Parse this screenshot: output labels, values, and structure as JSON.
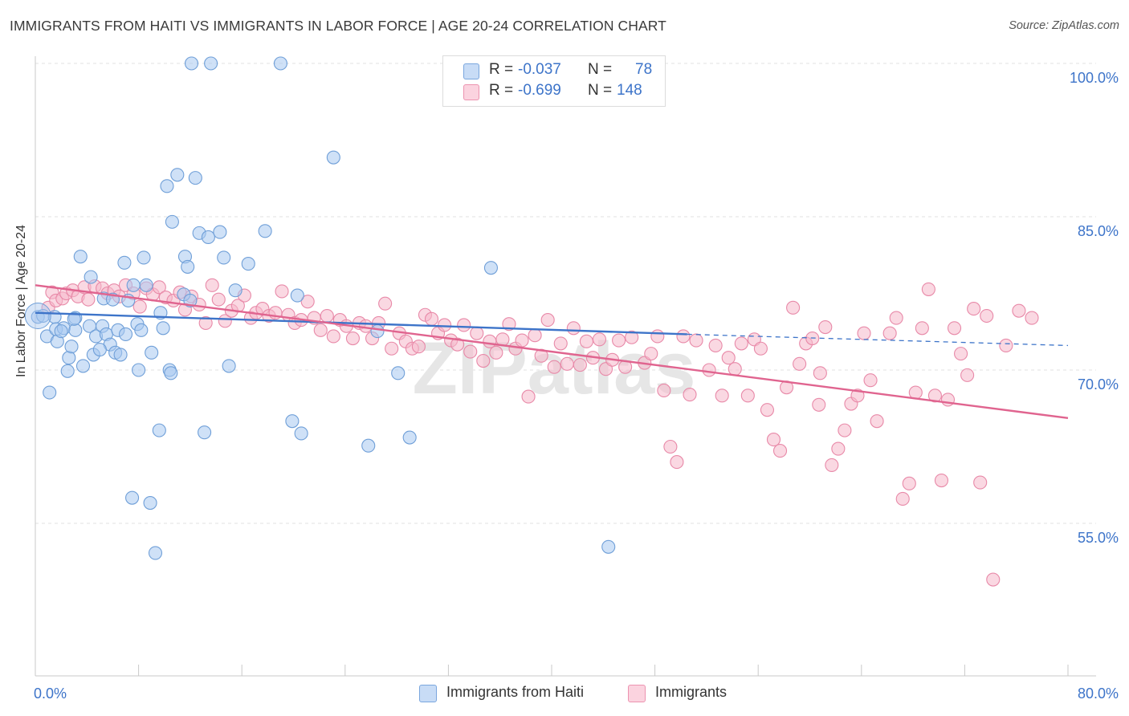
{
  "header": {
    "title": "IMMIGRANTS FROM HAITI VS IMMIGRANTS IN LABOR FORCE | AGE 20-24 CORRELATION CHART",
    "source": "Source: ZipAtlas.com"
  },
  "watermark": "ZIPatlas",
  "legend": {
    "rows": [
      {
        "r_label": "R =",
        "r_value": "-0.037",
        "n_label": "N =",
        "n_value": "78",
        "color": "#a8c8f0"
      },
      {
        "r_label": "R =",
        "r_value": "-0.699",
        "n_label": "N =",
        "n_value": "148",
        "color": "#f5b8cb"
      }
    ]
  },
  "bottom_legend": {
    "items": [
      {
        "label": "Immigrants from Haiti",
        "color": "#a8c8f0"
      },
      {
        "label": "Immigrants",
        "color": "#f5b8cb"
      }
    ]
  },
  "chart_data": {
    "type": "scatter",
    "title": "IMMIGRANTS FROM HAITI VS IMMIGRANTS IN LABOR FORCE | AGE 20-24 CORRELATION CHART",
    "ylabel": "In Labor Force | Age 20-24",
    "xlabel": "",
    "xlim": [
      0,
      80
    ],
    "ylim": [
      40,
      101.5
    ],
    "x_tick_labels": [
      {
        "value": 0,
        "label": "0.0%"
      },
      {
        "value": 80,
        "label": "80.0%"
      }
    ],
    "y_tick_labels": [
      {
        "value": 100,
        "label": "100.0%"
      },
      {
        "value": 85,
        "label": "85.0%"
      },
      {
        "value": 70,
        "label": "70.0%"
      },
      {
        "value": 55,
        "label": "55.0%"
      }
    ],
    "grid": true,
    "legend_position": "top-center",
    "series": [
      {
        "name": "Immigrants from Haiti",
        "color": "#a8c8f0",
        "stroke": "#6f9fd8",
        "trend_color": "#3d74c9",
        "R": -0.037,
        "N": 78,
        "trend": {
          "x0": 0,
          "y0": 75.6,
          "x1": 50.5,
          "y1": 73.5,
          "dash_to_x": 80,
          "dash_to_y": 72.4
        },
        "points": [
          [
            0.2,
            75.2
          ],
          [
            0.6,
            75.3
          ],
          [
            0.9,
            73.3
          ],
          [
            1.1,
            67.8
          ],
          [
            1.5,
            75.2
          ],
          [
            1.6,
            74.0
          ],
          [
            1.7,
            72.8
          ],
          [
            2.2,
            74.1
          ],
          [
            2.5,
            69.9
          ],
          [
            2.6,
            71.2
          ],
          [
            2.8,
            72.3
          ],
          [
            3.1,
            73.9
          ],
          [
            3.1,
            75.1
          ],
          [
            3.5,
            81.1
          ],
          [
            3.7,
            70.4
          ],
          [
            4.2,
            74.3
          ],
          [
            4.3,
            79.1
          ],
          [
            4.5,
            71.5
          ],
          [
            4.7,
            73.3
          ],
          [
            5.2,
            74.3
          ],
          [
            5.3,
            77.0
          ],
          [
            5.5,
            73.5
          ],
          [
            5.8,
            72.5
          ],
          [
            6.0,
            76.9
          ],
          [
            6.2,
            71.7
          ],
          [
            6.4,
            73.9
          ],
          [
            6.6,
            71.5
          ],
          [
            6.9,
            80.5
          ],
          [
            7.0,
            73.5
          ],
          [
            7.2,
            76.8
          ],
          [
            7.5,
            57.5
          ],
          [
            7.6,
            78.3
          ],
          [
            7.9,
            74.5
          ],
          [
            8.2,
            73.9
          ],
          [
            8.4,
            81.0
          ],
          [
            8.6,
            78.3
          ],
          [
            8.9,
            57.0
          ],
          [
            9.0,
            71.7
          ],
          [
            9.3,
            52.1
          ],
          [
            9.6,
            64.1
          ],
          [
            9.9,
            74.1
          ],
          [
            10.2,
            88.0
          ],
          [
            10.4,
            70.0
          ],
          [
            10.6,
            84.5
          ],
          [
            11.0,
            89.1
          ],
          [
            11.5,
            77.4
          ],
          [
            11.6,
            81.1
          ],
          [
            11.8,
            80.1
          ],
          [
            12.1,
            100.0
          ],
          [
            12.4,
            88.8
          ],
          [
            12.7,
            83.4
          ],
          [
            13.1,
            63.9
          ],
          [
            13.4,
            83.0
          ],
          [
            13.6,
            100.0
          ],
          [
            14.3,
            83.5
          ],
          [
            14.6,
            81.0
          ],
          [
            15.0,
            70.4
          ],
          [
            15.5,
            77.8
          ],
          [
            16.5,
            80.4
          ],
          [
            17.8,
            83.6
          ],
          [
            19.0,
            100.0
          ],
          [
            19.9,
            65.0
          ],
          [
            20.3,
            77.3
          ],
          [
            20.6,
            63.8
          ],
          [
            23.1,
            90.8
          ],
          [
            25.8,
            62.6
          ],
          [
            28.1,
            69.7
          ],
          [
            29.0,
            63.4
          ],
          [
            35.3,
            80.0
          ],
          [
            44.4,
            52.7
          ],
          [
            3.0,
            75.0
          ],
          [
            5.0,
            72.0
          ],
          [
            9.7,
            75.6
          ],
          [
            12.0,
            76.8
          ],
          [
            8.0,
            70.0
          ],
          [
            10.5,
            69.7
          ],
          [
            2.0,
            73.8
          ],
          [
            26.5,
            73.8
          ]
        ]
      },
      {
        "name": "Immigrants",
        "color": "#f5b8cb",
        "stroke": "#e889a8",
        "trend_color": "#e0648f",
        "R": -0.699,
        "N": 148,
        "trend": {
          "x0": 0,
          "y0": 78.3,
          "x1": 80,
          "y1": 65.3
        },
        "points": [
          [
            1.0,
            76.1
          ],
          [
            1.3,
            77.6
          ],
          [
            1.6,
            76.8
          ],
          [
            2.1,
            77.0
          ],
          [
            2.4,
            77.5
          ],
          [
            2.9,
            77.8
          ],
          [
            3.3,
            77.2
          ],
          [
            3.8,
            78.1
          ],
          [
            4.1,
            76.9
          ],
          [
            4.6,
            78.2
          ],
          [
            5.2,
            78.0
          ],
          [
            5.6,
            77.5
          ],
          [
            6.1,
            77.8
          ],
          [
            6.5,
            77.2
          ],
          [
            7.0,
            78.3
          ],
          [
            7.6,
            77.5
          ],
          [
            8.1,
            76.2
          ],
          [
            8.6,
            78.0
          ],
          [
            9.1,
            77.4
          ],
          [
            9.6,
            78.1
          ],
          [
            10.1,
            77.1
          ],
          [
            10.7,
            76.8
          ],
          [
            11.2,
            77.6
          ],
          [
            11.6,
            75.9
          ],
          [
            12.1,
            77.2
          ],
          [
            12.7,
            76.4
          ],
          [
            13.2,
            74.6
          ],
          [
            13.7,
            78.3
          ],
          [
            14.2,
            76.9
          ],
          [
            14.7,
            74.8
          ],
          [
            15.2,
            75.8
          ],
          [
            15.7,
            76.3
          ],
          [
            16.2,
            77.3
          ],
          [
            16.7,
            75.1
          ],
          [
            17.1,
            75.6
          ],
          [
            17.6,
            76.0
          ],
          [
            18.1,
            75.3
          ],
          [
            18.6,
            75.6
          ],
          [
            19.1,
            77.7
          ],
          [
            19.6,
            75.4
          ],
          [
            20.1,
            74.6
          ],
          [
            20.6,
            74.9
          ],
          [
            21.1,
            76.7
          ],
          [
            21.6,
            75.1
          ],
          [
            22.1,
            73.9
          ],
          [
            22.6,
            75.3
          ],
          [
            23.1,
            73.3
          ],
          [
            23.6,
            74.9
          ],
          [
            24.1,
            74.3
          ],
          [
            24.6,
            73.1
          ],
          [
            25.1,
            74.6
          ],
          [
            25.6,
            74.3
          ],
          [
            26.1,
            73.1
          ],
          [
            26.6,
            74.6
          ],
          [
            27.1,
            76.5
          ],
          [
            27.6,
            72.1
          ],
          [
            28.2,
            73.6
          ],
          [
            28.7,
            72.8
          ],
          [
            29.2,
            72.1
          ],
          [
            29.7,
            72.3
          ],
          [
            30.2,
            75.4
          ],
          [
            30.7,
            75.0
          ],
          [
            31.2,
            73.6
          ],
          [
            31.7,
            74.4
          ],
          [
            32.2,
            72.9
          ],
          [
            32.7,
            72.5
          ],
          [
            33.2,
            74.4
          ],
          [
            33.7,
            71.8
          ],
          [
            34.2,
            73.6
          ],
          [
            34.7,
            70.9
          ],
          [
            35.2,
            72.8
          ],
          [
            35.7,
            71.7
          ],
          [
            36.2,
            73.0
          ],
          [
            36.7,
            74.5
          ],
          [
            37.2,
            72.1
          ],
          [
            37.7,
            72.9
          ],
          [
            38.2,
            67.4
          ],
          [
            38.7,
            73.4
          ],
          [
            39.2,
            71.4
          ],
          [
            39.7,
            74.9
          ],
          [
            40.2,
            70.3
          ],
          [
            40.7,
            72.6
          ],
          [
            41.2,
            70.6
          ],
          [
            41.7,
            74.1
          ],
          [
            42.2,
            70.5
          ],
          [
            42.7,
            72.8
          ],
          [
            43.2,
            71.2
          ],
          [
            43.7,
            73.0
          ],
          [
            44.2,
            70.1
          ],
          [
            44.7,
            71.0
          ],
          [
            45.2,
            72.9
          ],
          [
            45.7,
            70.3
          ],
          [
            46.2,
            73.2
          ],
          [
            47.2,
            70.7
          ],
          [
            47.7,
            71.6
          ],
          [
            48.2,
            73.3
          ],
          [
            48.7,
            68.0
          ],
          [
            49.2,
            62.5
          ],
          [
            49.7,
            61.0
          ],
          [
            50.2,
            73.3
          ],
          [
            50.7,
            67.6
          ],
          [
            51.2,
            72.9
          ],
          [
            52.2,
            70.0
          ],
          [
            52.7,
            72.4
          ],
          [
            53.2,
            67.5
          ],
          [
            53.7,
            71.2
          ],
          [
            54.2,
            70.1
          ],
          [
            54.7,
            72.6
          ],
          [
            55.2,
            67.5
          ],
          [
            55.7,
            73.0
          ],
          [
            56.2,
            72.1
          ],
          [
            56.7,
            66.1
          ],
          [
            57.2,
            63.2
          ],
          [
            57.7,
            62.1
          ],
          [
            58.2,
            68.3
          ],
          [
            58.7,
            76.1
          ],
          [
            59.2,
            70.6
          ],
          [
            59.7,
            72.6
          ],
          [
            60.2,
            73.1
          ],
          [
            60.7,
            66.6
          ],
          [
            61.2,
            74.2
          ],
          [
            61.7,
            60.7
          ],
          [
            62.2,
            62.3
          ],
          [
            62.7,
            64.1
          ],
          [
            63.2,
            66.7
          ],
          [
            63.7,
            67.5
          ],
          [
            64.2,
            73.6
          ],
          [
            64.7,
            69.0
          ],
          [
            65.2,
            65.0
          ],
          [
            66.2,
            73.6
          ],
          [
            66.7,
            75.1
          ],
          [
            67.2,
            57.4
          ],
          [
            67.7,
            58.9
          ],
          [
            68.2,
            67.8
          ],
          [
            68.7,
            74.1
          ],
          [
            69.2,
            77.9
          ],
          [
            70.2,
            59.2
          ],
          [
            70.7,
            67.1
          ],
          [
            71.2,
            74.1
          ],
          [
            71.7,
            71.6
          ],
          [
            72.2,
            69.5
          ],
          [
            72.7,
            76.0
          ],
          [
            73.2,
            59.0
          ],
          [
            73.7,
            75.3
          ],
          [
            74.2,
            49.5
          ],
          [
            75.2,
            72.4
          ],
          [
            76.2,
            75.8
          ],
          [
            77.2,
            75.1
          ],
          [
            69.7,
            67.5
          ],
          [
            60.8,
            69.7
          ]
        ]
      }
    ]
  }
}
